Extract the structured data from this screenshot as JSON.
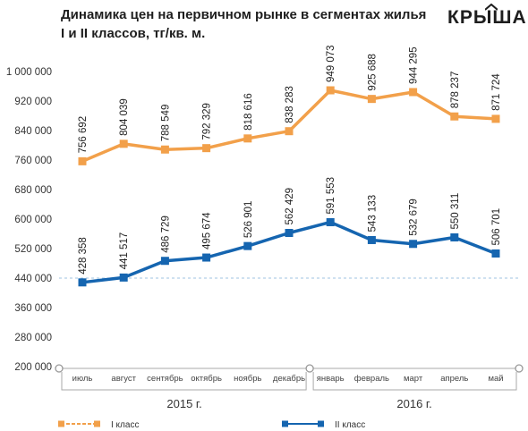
{
  "header": {
    "title_line1": "Динамика цен на первичном рынке в сегментах жилья",
    "title_line2": "I и II классов, тг/кв. м.",
    "logo_text": "КРЫША"
  },
  "chart_data": {
    "type": "line",
    "title": "Динамика цен на первичном рынке в сегментах жилья I и II классов, тг/кв. м.",
    "categories": [
      "июль",
      "август",
      "сентябрь",
      "октябрь",
      "ноябрь",
      "декабрь",
      "январь",
      "февраль",
      "март",
      "апрель",
      "май"
    ],
    "year_groups": [
      {
        "label": "2015 г.",
        "count": 6
      },
      {
        "label": "2016 г.",
        "count": 5
      }
    ],
    "y_ticks": [
      "1 000 000",
      "920 000",
      "840 000",
      "760 000",
      "680 000",
      "600 000",
      "520 000",
      "440 000",
      "360 000",
      "280 000",
      "200 000"
    ],
    "ylim": [
      200000,
      1000000
    ],
    "grid": false,
    "legend_position": "bottom",
    "series": [
      {
        "name": "I класс",
        "color": "#F2A04A",
        "values": [
          756692,
          804039,
          788549,
          792329,
          818616,
          838283,
          949073,
          925688,
          944295,
          878237,
          871724
        ],
        "labels": [
          "756 692",
          "804 039",
          "788 549",
          "792 329",
          "818 616",
          "838 283",
          "949 073",
          "925 688",
          "944 295",
          "878 237",
          "871 724"
        ]
      },
      {
        "name": "II класс",
        "color": "#1565B0",
        "values": [
          428358,
          441517,
          486729,
          495674,
          526901,
          562429,
          591553,
          543133,
          532679,
          550311,
          506701
        ],
        "labels": [
          "428 358",
          "441 517",
          "486 729",
          "495 674",
          "526 901",
          "562 429",
          "591 553",
          "543 133",
          "532 679",
          "550 311",
          "506 701"
        ]
      }
    ]
  }
}
